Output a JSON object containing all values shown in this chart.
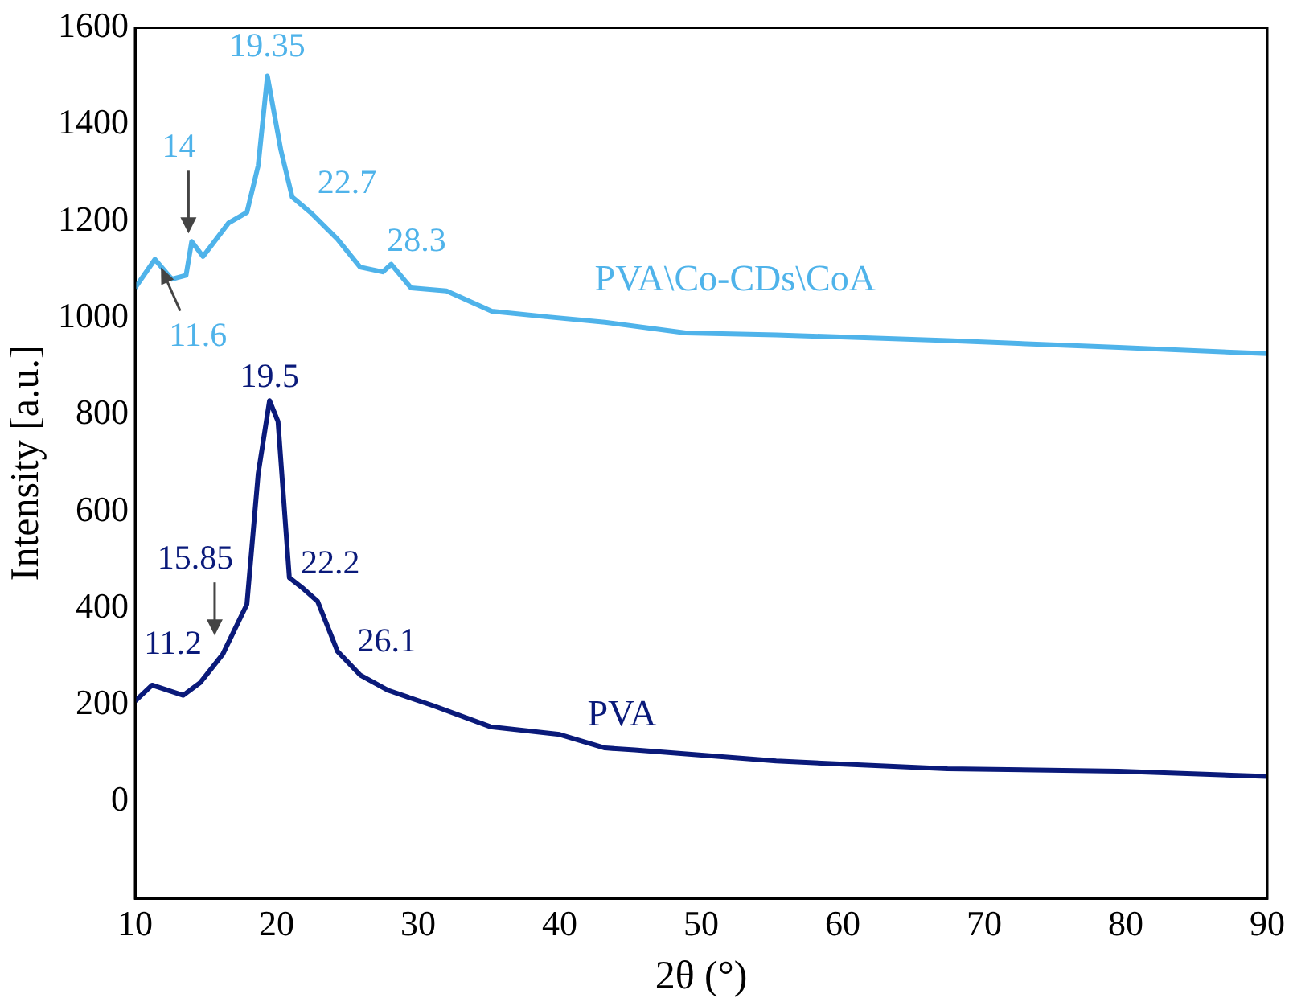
{
  "chart_data": {
    "type": "line",
    "xlabel": "2θ (°)",
    "ylabel": "Intensity [a.u.]",
    "xlim": [
      10,
      90
    ],
    "xticks": [
      10,
      20,
      30,
      40,
      50,
      60,
      70,
      80,
      90
    ],
    "ylim": [
      -200,
      1600
    ],
    "yticks": [
      0,
      200,
      400,
      600,
      800,
      1000,
      1200,
      1400,
      1600
    ],
    "grid": false,
    "legend": false,
    "marker": "none",
    "line_style": "solid",
    "series": [
      {
        "name": "PVA\\Co-CDs\\CoA",
        "color": "#4fb3ea",
        "x": [
          10,
          11.4,
          12.6,
          13.6,
          14,
          14.8,
          16.6,
          17.9,
          18.7,
          19.35,
          20.3,
          21.1,
          22.4,
          24.3,
          25.9,
          27.5,
          28.1,
          29.5,
          32,
          35.2,
          39.2,
          43.2,
          48.9,
          55.3,
          67.4,
          79.5,
          90
        ],
        "values": [
          1062,
          1121,
          1080,
          1088,
          1158,
          1127,
          1196,
          1218,
          1315,
          1500,
          1347,
          1250,
          1218,
          1163,
          1105,
          1095,
          1111,
          1062,
          1056,
          1014,
          1002,
          991,
          969,
          965,
          953,
          939,
          926
        ]
      },
      {
        "name": "PVA",
        "color": "#0a1a7a",
        "x": [
          10,
          11.2,
          13.4,
          14.6,
          16.2,
          17.9,
          18.7,
          19.5,
          20.1,
          20.9,
          21.9,
          22.9,
          24.3,
          25.9,
          27.9,
          31.1,
          35.1,
          40,
          43.2,
          45.3,
          55.3,
          67.4,
          79.5,
          90
        ],
        "values": [
          208,
          241,
          220,
          246,
          305,
          408,
          678,
          829,
          786,
          463,
          440,
          414,
          311,
          262,
          230,
          198,
          155,
          139,
          111,
          107,
          84,
          68,
          63,
          52
        ]
      }
    ],
    "annotations": [
      {
        "text": "19.35",
        "x": 19.35,
        "y": 1500
      },
      {
        "text": "14",
        "x": 14,
        "y": 1158
      },
      {
        "text": "22.7",
        "x": 22.7,
        "y": 1210
      },
      {
        "text": "28.3",
        "x": 28.3,
        "y": 1111
      },
      {
        "text": "11.6",
        "x": 11.6,
        "y": 1121
      },
      {
        "text": "19.5",
        "x": 19.5,
        "y": 829
      },
      {
        "text": "15.85",
        "x": 15.85,
        "y": 327
      },
      {
        "text": "22.2",
        "x": 22.2,
        "y": 430
      },
      {
        "text": "26.1",
        "x": 26.1,
        "y": 270
      },
      {
        "text": "11.2",
        "x": 11.2,
        "y": 241
      }
    ]
  }
}
